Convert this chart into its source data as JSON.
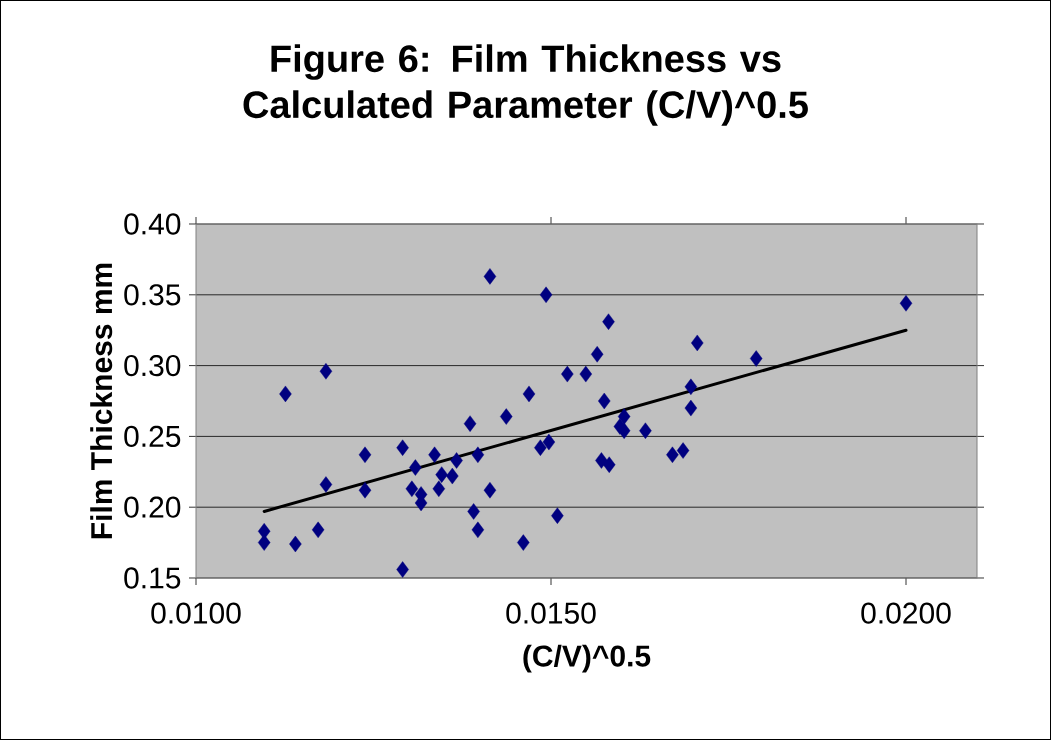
{
  "chart_data": {
    "type": "scatter",
    "title": "Figure 6: Film Thickness vs Calculated Parameter (C/V)^0.5",
    "xlabel": "(C/V)^0.5",
    "ylabel": "Film Thickness mm",
    "xlim": [
      0.01,
      0.021
    ],
    "ylim": [
      0.15,
      0.4
    ],
    "xticks": [
      {
        "value": 0.01,
        "label": "0.0100"
      },
      {
        "value": 0.015,
        "label": "0.0150"
      },
      {
        "value": 0.02,
        "label": "0.0200"
      }
    ],
    "yticks": [
      {
        "value": 0.15,
        "label": "0.15"
      },
      {
        "value": 0.2,
        "label": "0.20"
      },
      {
        "value": 0.25,
        "label": "0.25"
      },
      {
        "value": 0.3,
        "label": "0.30"
      },
      {
        "value": 0.35,
        "label": "0.35"
      },
      {
        "value": 0.4,
        "label": "0.40"
      }
    ],
    "grid": "y",
    "marker": "diamond",
    "series": [
      {
        "color": "#000080",
        "x": [
          0.01096,
          0.01096,
          0.01126,
          0.0114,
          0.01172,
          0.01183,
          0.01183,
          0.01238,
          0.01238,
          0.01291,
          0.01291,
          0.01304,
          0.01309,
          0.01317,
          0.01317,
          0.01336,
          0.01342,
          0.01346,
          0.01361,
          0.01367,
          0.01386,
          0.01391,
          0.01397,
          0.01397,
          0.01414,
          0.01414,
          0.01437,
          0.01461,
          0.01469,
          0.01485,
          0.01493,
          0.01497,
          0.01509,
          0.01523,
          0.01549,
          0.01565,
          0.01581,
          0.01575,
          0.01603,
          0.01597,
          0.01603,
          0.01633,
          0.01571,
          0.01582,
          0.01671,
          0.01686,
          0.01697,
          0.01697,
          0.01706,
          0.01789,
          0.02
        ],
        "values": [
          0.183,
          0.175,
          0.28,
          0.174,
          0.184,
          0.296,
          0.216,
          0.237,
          0.212,
          0.242,
          0.156,
          0.213,
          0.228,
          0.209,
          0.203,
          0.237,
          0.213,
          0.223,
          0.222,
          0.233,
          0.259,
          0.197,
          0.237,
          0.184,
          0.363,
          0.212,
          0.264,
          0.175,
          0.28,
          0.242,
          0.35,
          0.246,
          0.194,
          0.294,
          0.294,
          0.308,
          0.331,
          0.275,
          0.264,
          0.257,
          0.254,
          0.254,
          0.233,
          0.23,
          0.237,
          0.24,
          0.285,
          0.27,
          0.316,
          0.305,
          0.344
        ]
      },
      {
        "type": "line",
        "color": "#000000",
        "marker": "none",
        "x": [
          0.01096,
          0.02
        ],
        "values": [
          0.197,
          0.325
        ]
      }
    ]
  }
}
